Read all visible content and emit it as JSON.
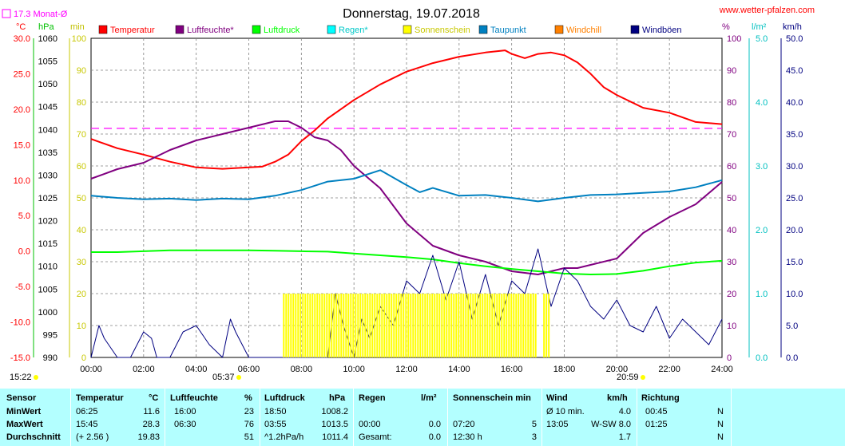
{
  "header": {
    "title": "Donnerstag, 19.07.2018",
    "website": "www.wetter-pfalzen.com",
    "month_avg": "17.3 Monat-Ø",
    "units": {
      "temp": "°C",
      "press": "hPa",
      "min": "min",
      "pct": "%",
      "rain": "l/m²",
      "wind": "km/h"
    },
    "sunrise": "05:37",
    "sunset": "20:59",
    "moonrise": "15:22"
  },
  "colors": {
    "temperatur": "#ff0000",
    "luftfeuchte": "#800080",
    "luftdruck": "#00ff00",
    "regen": "#00ffff",
    "sonnenschein": "#ffff00",
    "taupunkt": "#0080c0",
    "windchill": "#ff8000",
    "windboeen": "#000080",
    "month_avg": "#ff00ff"
  },
  "legend": [
    {
      "label": "Temperatur",
      "color": "#ff0000"
    },
    {
      "label": "Luftfeuchte*",
      "color": "#800080"
    },
    {
      "label": "Luftdruck",
      "color": "#00ff00"
    },
    {
      "label": "Regen*",
      "color": "#00ffff"
    },
    {
      "label": "Sonnenschein",
      "color": "#ffff00"
    },
    {
      "label": "Taupunkt",
      "color": "#0080c0"
    },
    {
      "label": "Windchill",
      "color": "#ff8000"
    },
    {
      "label": "Windböen",
      "color": "#000080"
    }
  ],
  "axes": {
    "temp_ticks": [
      "30.0",
      "25.0",
      "20.0",
      "15.0",
      "10.0",
      "5.0",
      "0.0",
      "-5.0",
      "-10.0",
      "-15.0"
    ],
    "press_ticks": [
      "1060",
      "1055",
      "1050",
      "1045",
      "1040",
      "1035",
      "1030",
      "1025",
      "1020",
      "1015",
      "1010",
      "1005",
      "1000",
      "995",
      "990"
    ],
    "min_ticks": [
      "100",
      "90",
      "80",
      "70",
      "60",
      "50",
      "40",
      "30",
      "20",
      "10",
      "0"
    ],
    "pct_ticks": [
      "100",
      "90",
      "80",
      "70",
      "60",
      "50",
      "40",
      "30",
      "20",
      "10",
      "0"
    ],
    "rain_ticks": [
      "5.0",
      "4.0",
      "3.0",
      "2.0",
      "1.0",
      "0.0"
    ],
    "wind_ticks": [
      "50.0",
      "45.0",
      "40.0",
      "35.0",
      "30.0",
      "25.0",
      "20.0",
      "15.0",
      "10.0",
      "5.0",
      "0.0"
    ],
    "time_ticks": [
      "00:00",
      "02:00",
      "04:00",
      "06:00",
      "08:00",
      "10:00",
      "12:00",
      "14:00",
      "16:00",
      "18:00",
      "20:00",
      "22:00",
      "24:00"
    ]
  },
  "chart_data": {
    "type": "line",
    "title": "Donnerstag, 19.07.2018",
    "x_range": [
      "00:00",
      "24:00"
    ],
    "ylim_temp": [
      -15,
      30
    ],
    "ylim_pressure": [
      990,
      1060
    ],
    "ylim_humidity": [
      0,
      100
    ],
    "ylim_rain": [
      0,
      5
    ],
    "ylim_wind": [
      0,
      50
    ],
    "month_avg_temp": 17.3,
    "series": [
      {
        "name": "Temperatur",
        "axis": "temp",
        "x": [
          0,
          1,
          2,
          3,
          4,
          5,
          6,
          6.5,
          7,
          7.5,
          8,
          8.5,
          9,
          9.5,
          10,
          11,
          12,
          13,
          14,
          15,
          15.75,
          16,
          16.5,
          17,
          17.5,
          18,
          18.5,
          19,
          19.5,
          20,
          21,
          22,
          23,
          24
        ],
        "values": [
          15.8,
          14.5,
          13.6,
          12.6,
          11.8,
          11.6,
          11.8,
          11.9,
          12.6,
          13.6,
          15.5,
          17.0,
          18.7,
          20.0,
          21.3,
          23.5,
          25.3,
          26.5,
          27.4,
          28.0,
          28.3,
          27.8,
          27.2,
          27.8,
          28.0,
          27.6,
          26.6,
          25.0,
          23.1,
          22.0,
          20.2,
          19.5,
          18.2,
          17.9
        ]
      },
      {
        "name": "Luftfeuchte*",
        "axis": "pct",
        "x": [
          0,
          1,
          2,
          3,
          4,
          5,
          6,
          6.5,
          7,
          7.5,
          8,
          8.5,
          9,
          9.5,
          10,
          11,
          12,
          13,
          14,
          15,
          16,
          17,
          18,
          18.5,
          19,
          20,
          21,
          22,
          23,
          24
        ],
        "values": [
          56,
          59,
          61,
          65,
          68,
          70,
          72,
          73,
          74,
          74,
          72,
          69,
          68,
          65,
          60,
          53,
          42,
          35,
          32,
          30,
          27,
          26,
          28,
          28,
          29,
          31,
          39,
          44,
          48,
          55
        ]
      },
      {
        "name": "Luftdruck",
        "axis": "pressure",
        "x": [
          0,
          1,
          2,
          3,
          4,
          5,
          6,
          7,
          8,
          9,
          10,
          11,
          12,
          13,
          14,
          15,
          16,
          17,
          18,
          19,
          20,
          21,
          22,
          23,
          24
        ],
        "values": [
          1013.1,
          1013.1,
          1013.3,
          1013.5,
          1013.5,
          1013.5,
          1013.5,
          1013.4,
          1013.3,
          1013.2,
          1012.8,
          1012.4,
          1012.0,
          1011.5,
          1010.7,
          1010.0,
          1009.4,
          1008.9,
          1008.4,
          1008.2,
          1008.3,
          1009.0,
          1010.0,
          1010.8,
          1011.2
        ]
      },
      {
        "name": "Taupunkt",
        "axis": "temp",
        "x": [
          0,
          1,
          2,
          3,
          4,
          5,
          6,
          7,
          8,
          9,
          10,
          11,
          12,
          12.5,
          13,
          14,
          15,
          16,
          17,
          18,
          19,
          20,
          21,
          22,
          23,
          24
        ],
        "values": [
          7.8,
          7.5,
          7.3,
          7.4,
          7.2,
          7.4,
          7.3,
          7.8,
          8.6,
          9.8,
          10.2,
          11.4,
          9.3,
          8.3,
          8.9,
          7.8,
          7.9,
          7.5,
          7.0,
          7.5,
          7.9,
          8.0,
          8.2,
          8.4,
          9.0,
          10.0
        ]
      },
      {
        "name": "Windböen",
        "axis": "wind",
        "x": [
          0,
          0.3,
          0.5,
          1,
          1.5,
          2,
          2.3,
          2.5,
          3,
          3.5,
          4,
          4.5,
          5,
          5.3,
          5.5,
          6,
          7,
          8,
          9,
          9.3,
          9.6,
          10,
          10.3,
          10.6,
          11,
          11.5,
          12,
          12.5,
          13,
          13.5,
          14,
          14.5,
          15,
          15.5,
          16,
          16.5,
          17,
          17.5,
          18,
          18.5,
          19,
          19.5,
          20,
          20.5,
          21,
          21.5,
          22,
          22.5,
          23,
          23.5,
          24
        ],
        "values": [
          0,
          5,
          3,
          0,
          0,
          4,
          3,
          0,
          0,
          4,
          5,
          2,
          0,
          6,
          4,
          0,
          0,
          0,
          0,
          10,
          5,
          0,
          6,
          3,
          8,
          5,
          12,
          10,
          16,
          9,
          15,
          6,
          13,
          5,
          12,
          10,
          17,
          8,
          14,
          12,
          8,
          6,
          9,
          5,
          4,
          8,
          3,
          6,
          4,
          2,
          6
        ]
      },
      {
        "name": "Sonnenschein",
        "axis": "min",
        "x": [
          7.3,
          16.7,
          16.9,
          17.2,
          17.4,
          20.1
        ],
        "values": [
          5,
          5,
          0,
          5,
          0,
          5
        ]
      }
    ]
  },
  "table": {
    "headers": {
      "sensor": "Sensor",
      "temperatur": "Temperatur",
      "temp_unit": "°C",
      "luftfeuchte": "Luftfeuchte",
      "luft_unit": "%",
      "luftdruck": "Luftdruck",
      "druck_unit": "hPa",
      "regen": "Regen",
      "regen_unit": "l/m²",
      "sonne": "Sonnenschein min",
      "wind": "Wind",
      "wind_unit": "km/h",
      "richtung": "Richtung"
    },
    "rows": [
      {
        "label": "MinWert",
        "t_time": "06:25",
        "t_val": "11.6",
        "h_time": "16:00",
        "h_val": "23",
        "p_time": "18:50",
        "p_val": "1008.2",
        "r_time": "",
        "r_val": "",
        "s_time": "",
        "s_val": "",
        "w_time": "Ø 10 min.",
        "w_val": "4.0",
        "d_time": "00:45",
        "d_val": "N"
      },
      {
        "label": "MaxWert",
        "t_time": "15:45",
        "t_val": "28.3",
        "h_time": "06:30",
        "h_val": "76",
        "p_time": "03:55",
        "p_val": "1013.5",
        "r_time": "00:00",
        "r_val": "0.0",
        "s_time": "07:20",
        "s_val": "5",
        "w_time": "13:05",
        "w_val": "W-SW 8.0",
        "d_time": "01:25",
        "d_val": "N"
      },
      {
        "label": "Durchschnitt",
        "t_time": "(+ 2.56 )",
        "t_val": "19.83",
        "h_time": "",
        "h_val": "51",
        "p_time": "^1.2hPa/h",
        "p_val": "1011.4",
        "r_time": "Gesamt:",
        "r_val": "0.0",
        "s_time": "12:30 h",
        "s_val": "3",
        "w_time": "",
        "w_val": "1.7",
        "d_time": "",
        "d_val": "N"
      }
    ]
  }
}
